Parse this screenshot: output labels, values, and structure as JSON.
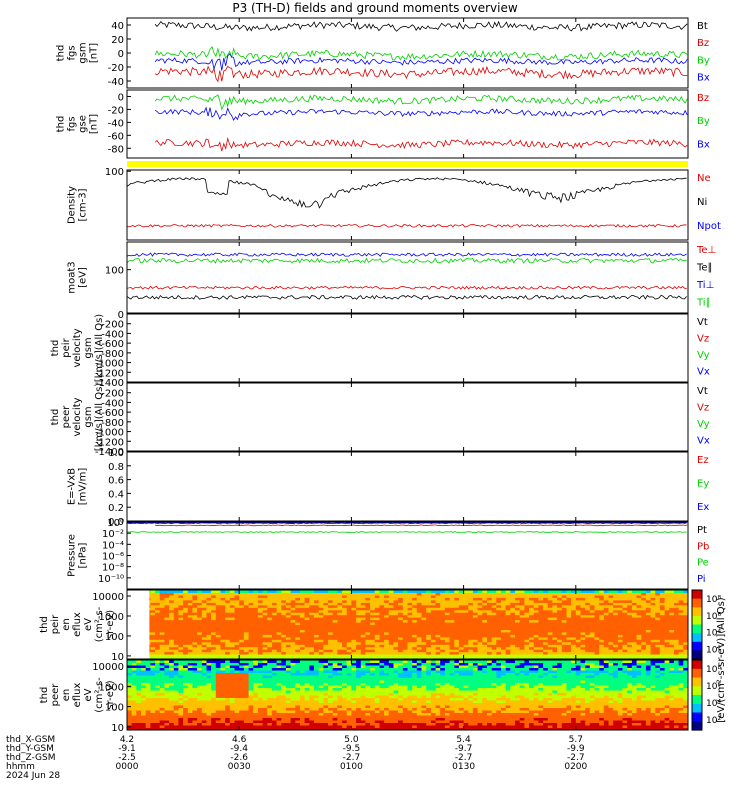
{
  "title": "P3 (TH-D) fields and ground moments overview",
  "colors": {
    "black": "#000000",
    "red": "#e00000",
    "green": "#00d000",
    "blue": "#0000ff",
    "yellow": "#ffff00"
  },
  "chart_data": [
    {
      "type": "line",
      "panel": "fgs_gsm",
      "ylabel": [
        "thd",
        "fgs",
        "gsm",
        "[nT]"
      ],
      "ylim": [
        -50,
        50
      ],
      "yticks": [
        40,
        20,
        0,
        -20,
        -40
      ],
      "xlim": [
        0,
        200
      ],
      "series": [
        {
          "name": "Bt",
          "color": "black",
          "start": 10,
          "level": 38,
          "noise": 5
        },
        {
          "name": "Bz",
          "color": "red",
          "start": 10,
          "level": -28,
          "noise": 6
        },
        {
          "name": "By",
          "color": "green",
          "start": 10,
          "level": -3,
          "noise": 5
        },
        {
          "name": "Bx",
          "color": "blue",
          "start": 10,
          "level": -12,
          "noise": 4
        }
      ]
    },
    {
      "type": "line",
      "panel": "fgs_gse",
      "ylabel": [
        "thd",
        "fgs",
        "gse",
        "[nT]"
      ],
      "ylim": [
        -95,
        10
      ],
      "yticks": [
        0,
        -20,
        -40,
        -60,
        -80
      ],
      "xlim": [
        0,
        200
      ],
      "series": [
        {
          "name": "Bz",
          "color": "red",
          "start": 10,
          "level": -73,
          "noise": 5
        },
        {
          "name": "By",
          "color": "green",
          "start": 10,
          "level": -5,
          "noise": 5
        },
        {
          "name": "Bx",
          "color": "blue",
          "start": 10,
          "level": -25,
          "noise": 4
        }
      ]
    },
    {
      "type": "line",
      "panel": "density",
      "ylabel": [
        "Density",
        "[cm-3]"
      ],
      "ylim": [
        0.5,
        110
      ],
      "ylog": true,
      "ytick_labels": [
        "100"
      ],
      "xlim": [
        0,
        200
      ],
      "series": [
        {
          "name": "Ne",
          "color": "red",
          "start": 0,
          "level": 1.5,
          "noise": 0.2
        },
        {
          "name": "Ni",
          "color": "black",
          "start": 0,
          "level": 35,
          "noise": 10
        },
        {
          "name": "Npot",
          "color": "blue",
          "start": 0,
          "level": null,
          "noise": 0
        }
      ]
    },
    {
      "type": "line",
      "panel": "temperature",
      "ylabel": [
        "moat3",
        "[eV]"
      ],
      "ylim": [
        8,
        500
      ],
      "ylog": true,
      "ytick_labels": [
        "100"
      ],
      "xlim": [
        0,
        200
      ],
      "series": [
        {
          "name": "Te⊥",
          "color": "red",
          "start": 0,
          "level": 35,
          "noise": 4
        },
        {
          "name": "Te∥",
          "color": "black",
          "start": 0,
          "level": 20,
          "noise": 3
        },
        {
          "name": "Ti⊥",
          "color": "blue",
          "start": 0,
          "level": 240,
          "noise": 30
        },
        {
          "name": "Ti∥",
          "color": "green",
          "start": 0,
          "level": 170,
          "noise": 30
        }
      ]
    },
    {
      "type": "line",
      "panel": "peir_velocity",
      "ylabel": [
        "thd",
        "peir",
        "velocity",
        "gsm",
        "[km/s](All Qs)"
      ],
      "ylim": [
        -1400,
        0
      ],
      "yticks": [
        0,
        -200,
        -400,
        -600,
        -800,
        -1000,
        -1200,
        -1400
      ],
      "xlim": [
        0,
        200
      ],
      "series": [
        {
          "name": "Vt",
          "color": "black"
        },
        {
          "name": "Vz",
          "color": "red"
        },
        {
          "name": "Vy",
          "color": "green"
        },
        {
          "name": "Vx",
          "color": "blue"
        }
      ]
    },
    {
      "type": "line",
      "panel": "peer_velocity",
      "ylabel": [
        "thd",
        "peer",
        "velocity",
        "gsm",
        "[km/s](All Qs)"
      ],
      "ylim": [
        -1400,
        0
      ],
      "yticks": [
        -200,
        -400,
        -600,
        -800,
        -1000,
        -1200,
        -1400
      ],
      "xlim": [
        0,
        200
      ],
      "series": [
        {
          "name": "Vt",
          "color": "black"
        },
        {
          "name": "Vz",
          "color": "red"
        },
        {
          "name": "Vy",
          "color": "green"
        },
        {
          "name": "Vx",
          "color": "blue"
        }
      ]
    },
    {
      "type": "line",
      "panel": "efield",
      "ylabel": [
        "E=-VxB",
        "[mV/m]"
      ],
      "ylim": [
        0,
        1
      ],
      "yticks": [
        1.0,
        0.8,
        0.6,
        0.4,
        0.2,
        0.0
      ],
      "xlim": [
        0,
        200
      ],
      "series": [
        {
          "name": "Ez",
          "color": "red"
        },
        {
          "name": "Ey",
          "color": "green"
        },
        {
          "name": "Ex",
          "color": "blue"
        }
      ]
    },
    {
      "type": "line",
      "panel": "pressure",
      "ylabel": [
        "Pressure",
        "[nPa]"
      ],
      "ylim": [
        -12,
        0
      ],
      "ylog": true,
      "yticks": [
        {
          "e": 0,
          "label": "10⁰"
        },
        {
          "e": -2,
          "label": "10⁻²"
        },
        {
          "e": -4,
          "label": "10⁻⁴"
        },
        {
          "e": -6,
          "label": "10⁻⁶"
        },
        {
          "e": -8,
          "label": "10⁻⁸"
        },
        {
          "e": -10,
          "label": "10⁻¹⁰"
        }
      ],
      "xlim": [
        0,
        200
      ],
      "series": [
        {
          "name": "Pt",
          "color": "black",
          "start": 0,
          "level": -0.2
        },
        {
          "name": "Pb",
          "color": "red",
          "start": 10,
          "level": -0.6
        },
        {
          "name": "Pe",
          "color": "green",
          "start": 0,
          "level": -1.8
        },
        {
          "name": "Pi",
          "color": "blue",
          "start": 0,
          "level": -0.15
        }
      ]
    },
    {
      "type": "heatmap",
      "panel": "peir_eflux",
      "ylabel": [
        "thd",
        "peir",
        "en",
        "eflux",
        "eV",
        "(cm²-s-",
        "sr-eV)"
      ],
      "ylog": true,
      "ylim": [
        7,
        20000
      ],
      "yticks": [
        "10000",
        "1000",
        "100",
        "10"
      ],
      "colorbar": {
        "label": "eV/(cm²-s-sr-eV) (All Qs)",
        "ticks": [
          "10⁸",
          "10⁶",
          "10⁴",
          "10²"
        ]
      },
      "xlim": [
        0,
        200
      ]
    },
    {
      "type": "heatmap",
      "panel": "peer_eflux",
      "ylabel": [
        "thd",
        "peer",
        "en",
        "eflux",
        "eV",
        "(cm²-s-",
        "sr-eV)"
      ],
      "ylog": true,
      "ylim": [
        7,
        20000
      ],
      "yticks": [
        "10000",
        "1000",
        "100",
        "10"
      ],
      "colorbar": {
        "label": "eV/(cm²-s-sr-eV) (All Qs)",
        "ticks": [
          "10⁸",
          "10⁶",
          "10⁴",
          "10²"
        ]
      },
      "xlim": [
        0,
        200
      ]
    }
  ],
  "xaxis": {
    "labels": [
      "thd_X-GSM",
      "thd_Y-GSM",
      "thd_Z-GSM",
      "hhmm",
      "2024 Jun 28"
    ],
    "ticks": [
      {
        "t": 0,
        "x": "4.2",
        "y": "-9.1",
        "z": "-2.5",
        "hhmm": "0000"
      },
      {
        "t": 40,
        "x": "4.6",
        "y": "-9.4",
        "z": "-2.6",
        "hhmm": "0030"
      },
      {
        "t": 80,
        "x": "5.0",
        "y": "-9.5",
        "z": "-2.7",
        "hhmm": "0100"
      },
      {
        "t": 120,
        "x": "5.4",
        "y": "-9.7",
        "z": "-2.7",
        "hhmm": "0130"
      },
      {
        "t": 160,
        "x": "5.7",
        "y": "-9.9",
        "z": "-2.7",
        "hhmm": "0200"
      }
    ],
    "colorbar_units": "[eV/(cm²-s-sr-eV)](All Qs)"
  }
}
